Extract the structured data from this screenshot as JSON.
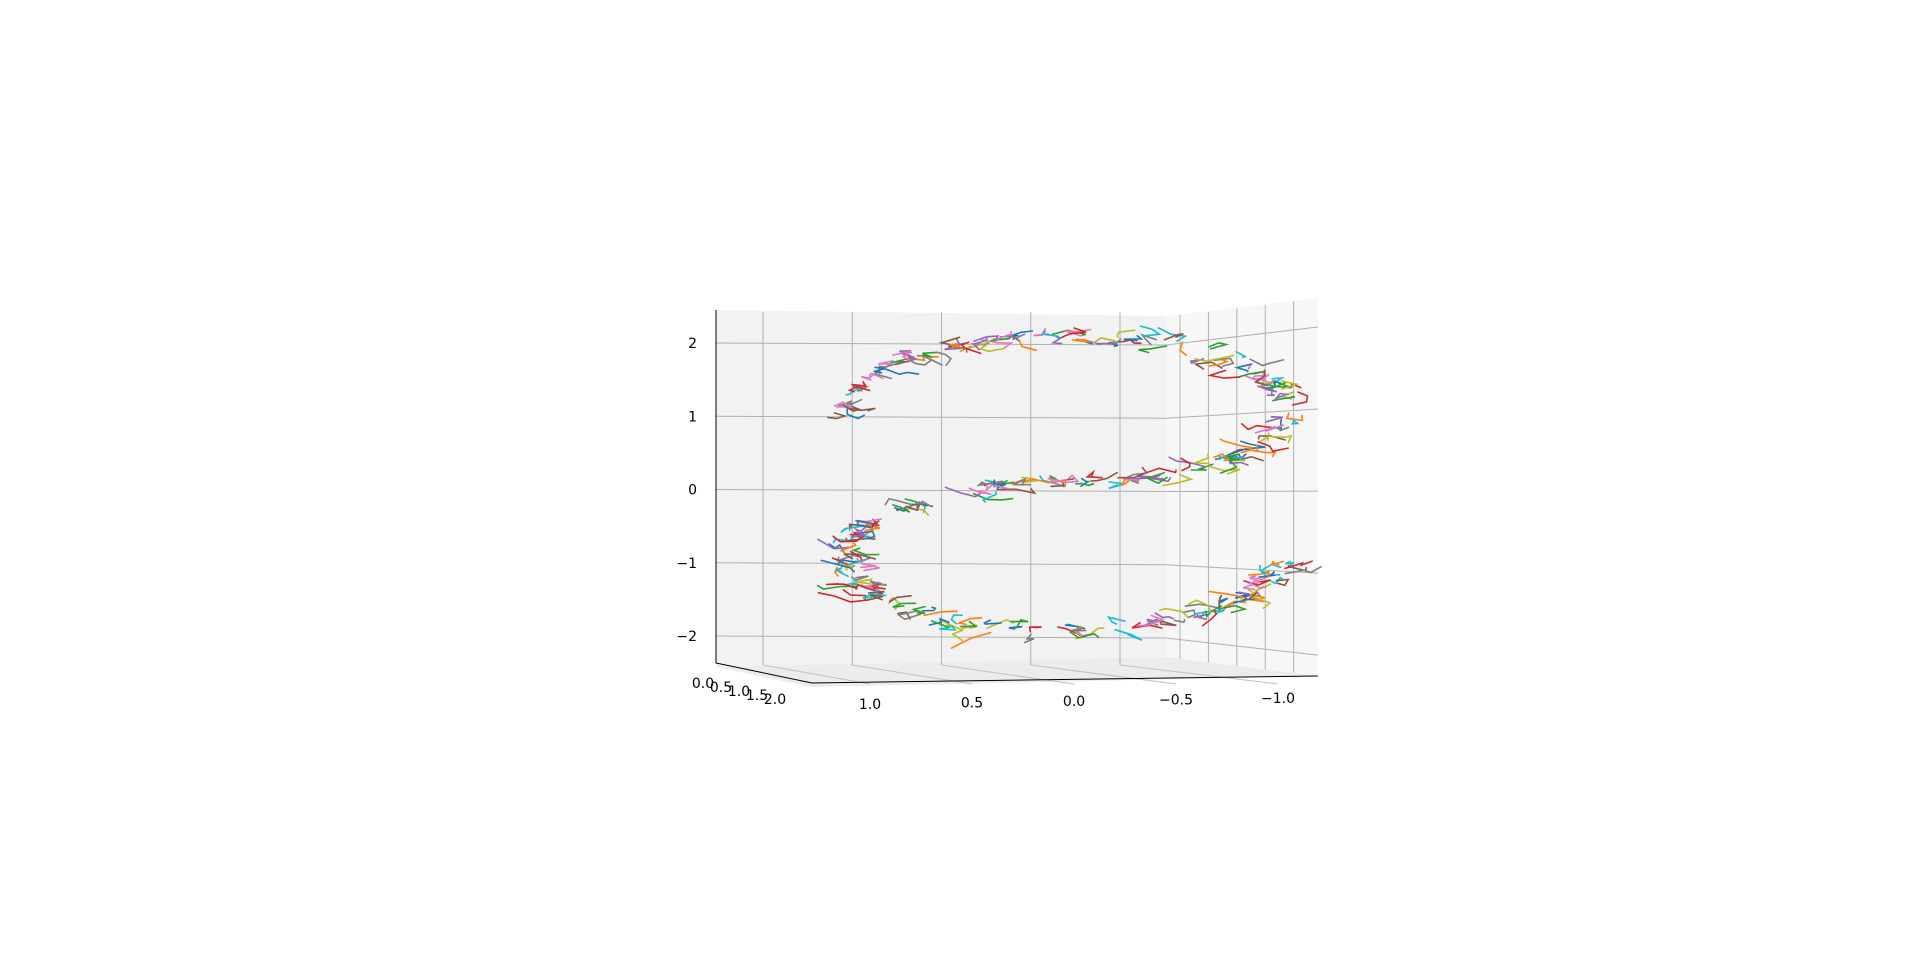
{
  "chart_data": {
    "type": "line",
    "projection": "3d",
    "title": "",
    "xlabel": "",
    "ylabel": "",
    "zlabel": "",
    "x_ticks": [
      "1.0",
      "0.5",
      "0.0",
      "−0.5",
      "−1.0"
    ],
    "x_tick_values": [
      1.0,
      0.5,
      0.0,
      -0.5,
      -1.0
    ],
    "y_ticks": [
      "0.0",
      "0.5",
      "1.0",
      "1.5",
      "2.0"
    ],
    "y_tick_values": [
      0.0,
      0.5,
      1.0,
      1.5,
      2.0
    ],
    "z_ticks": [
      "2",
      "1",
      "0",
      "−1",
      "−2"
    ],
    "z_tick_values": [
      2,
      1,
      0,
      -1,
      -2
    ],
    "xlim": [
      -1.2,
      1.2
    ],
    "ylim": [
      0,
      2.2
    ],
    "zlim": [
      -2.3,
      2.3
    ],
    "grid": true,
    "shape": "S-curve formed by many short random line segments",
    "series_colors": [
      "#1f77b4",
      "#ff7f0e",
      "#2ca02c",
      "#d62728",
      "#9467bd",
      "#8c564b",
      "#e377c2",
      "#7f7f7f",
      "#bcbd22",
      "#17becf"
    ],
    "series_count": 300,
    "segment_points": 4
  }
}
